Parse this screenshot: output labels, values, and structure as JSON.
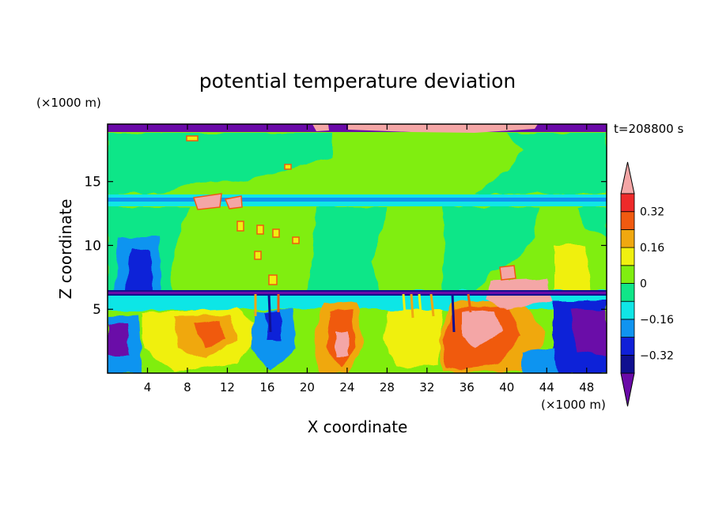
{
  "chart_data": {
    "type": "heatmap",
    "title": "potential temperature deviation",
    "xlabel": "X coordinate",
    "ylabel": "Z coordinate",
    "x_unit": "(×1000 m)",
    "y_unit": "(×1000 m)",
    "time_label": "t=208800 s",
    "xlim": [
      0,
      50
    ],
    "ylim": [
      0,
      19.5
    ],
    "x_ticks": [
      4,
      8,
      12,
      16,
      20,
      24,
      28,
      32,
      36,
      40,
      44,
      48
    ],
    "y_ticks": [
      5,
      10,
      15
    ],
    "colorbar": {
      "levels": [
        -0.4,
        -0.32,
        -0.24,
        -0.16,
        -0.08,
        0,
        0.08,
        0.16,
        0.24,
        0.32,
        0.4
      ],
      "labeled_levels": [
        -0.32,
        -0.16,
        0,
        0.16,
        0.32
      ],
      "labels": [
        "−0.32",
        "−0.16",
        "0",
        "0.16",
        "0.32"
      ],
      "colors": [
        "#6a0aa8",
        "#101090",
        "#1020d8",
        "#1094f0",
        "#10e6e6",
        "#10e688",
        "#80ee10",
        "#f0f010",
        "#f0a810",
        "#f05a10",
        "#ee2a2a",
        "#f4a6a6"
      ],
      "extend": "both"
    },
    "regions": [
      {
        "band": "top boundary z 19–19.5",
        "value": -0.4
      },
      {
        "band": "upper layer z 14–19",
        "value": 0.04
      },
      {
        "band": "thin layer z ~14",
        "value": -0.12
      },
      {
        "band": "middle layer z 6.5–13.5",
        "value": 0.04
      },
      {
        "band": "lower layer z 0–6.5",
        "value": "mixed -0.4 to 0.4"
      }
    ]
  }
}
